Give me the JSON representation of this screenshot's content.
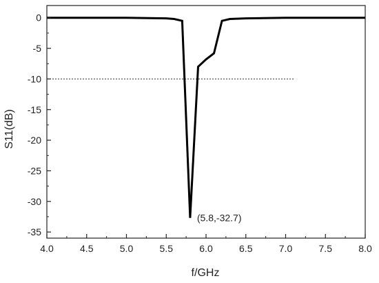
{
  "chart_data": {
    "type": "line",
    "title": "",
    "xlabel": "f/GHz",
    "ylabel": "S11(dB)",
    "xlim": [
      4.0,
      8.0
    ],
    "ylim": [
      -36,
      2
    ],
    "x_ticks": [
      4.0,
      4.5,
      5.0,
      5.5,
      6.0,
      6.5,
      7.0,
      7.5,
      8.0
    ],
    "x_tick_labels": [
      "4.0",
      "4.5",
      "5.0",
      "5.5",
      "6.0",
      "6.5",
      "7.0",
      "7.5",
      "8.0"
    ],
    "y_ticks": [
      0,
      -5,
      -10,
      -15,
      -20,
      -25,
      -30,
      -35
    ],
    "y_tick_labels": [
      "0",
      "-5",
      "-10",
      "-15",
      "-20",
      "-25",
      "-30",
      "-35"
    ],
    "grid": false,
    "legend": "none",
    "line_color": "#000000",
    "series": [
      {
        "x": [
          4.0,
          4.5,
          5.0,
          5.5,
          5.6,
          5.7,
          5.8,
          5.9,
          6.0,
          6.1,
          6.2,
          6.3,
          6.5,
          7.0,
          7.5,
          8.0
        ],
        "y": [
          0,
          0,
          0,
          -0.1,
          -0.2,
          -0.5,
          -32.7,
          -8.0,
          -6.8,
          -5.8,
          -0.5,
          -0.2,
          -0.1,
          0,
          0,
          0
        ]
      }
    ],
    "reference_line": {
      "y": -10,
      "x_range": [
        4.0,
        7.1
      ],
      "style": "dotted"
    },
    "annotation": {
      "x": 5.8,
      "y": -32.7,
      "text": "(5.8,-32.7)"
    }
  }
}
